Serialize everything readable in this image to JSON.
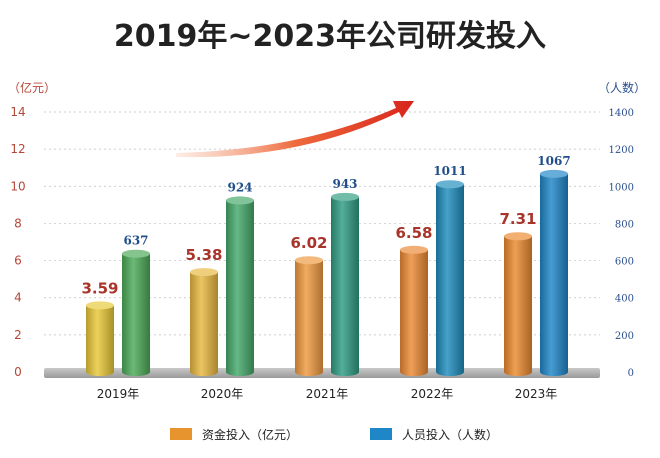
{
  "chart_data": {
    "type": "bar",
    "title": "2019年~2023年公司研发投入",
    "categories": [
      "2019年",
      "2020年",
      "2021年",
      "2022年",
      "2023年"
    ],
    "left_axis": {
      "unit": "（亿元）",
      "range": [
        0,
        14
      ],
      "ticks": [
        "0",
        "2",
        "4",
        "6",
        "8",
        "10",
        "12",
        "14"
      ]
    },
    "right_axis": {
      "unit": "（人数）",
      "range": [
        0,
        1400
      ],
      "ticks": [
        "0",
        "200",
        "400",
        "600",
        "800",
        "1000",
        "1200",
        "1400"
      ]
    },
    "series": [
      {
        "name": "资金投入（亿元）",
        "axis": "left",
        "values": [
          3.59,
          5.38,
          6.02,
          6.58,
          7.31
        ],
        "labels": [
          "3.59",
          "5.38",
          "6.02",
          "6.58",
          "7.31"
        ],
        "colors": [
          "#e8c838",
          "#e8b840",
          "#ef9a40",
          "#ec8a34",
          "#ea8a2e"
        ]
      },
      {
        "name": "人员投入（人数）",
        "axis": "right",
        "values": [
          637,
          924,
          943,
          1011,
          1067
        ],
        "labels": [
          "637",
          "924",
          "943",
          "1011",
          "1067"
        ],
        "colors": [
          "#4caa58",
          "#45a86a",
          "#2f9c82",
          "#1f8cbc",
          "#1f86c8"
        ]
      }
    ],
    "grid": true,
    "legend_position": "bottom",
    "decoration": "red trend arrow pointing up-right",
    "colors": {
      "left_axis": "#b5473a",
      "right_axis": "#2b4f8e",
      "arrow": "#d8241c"
    }
  }
}
